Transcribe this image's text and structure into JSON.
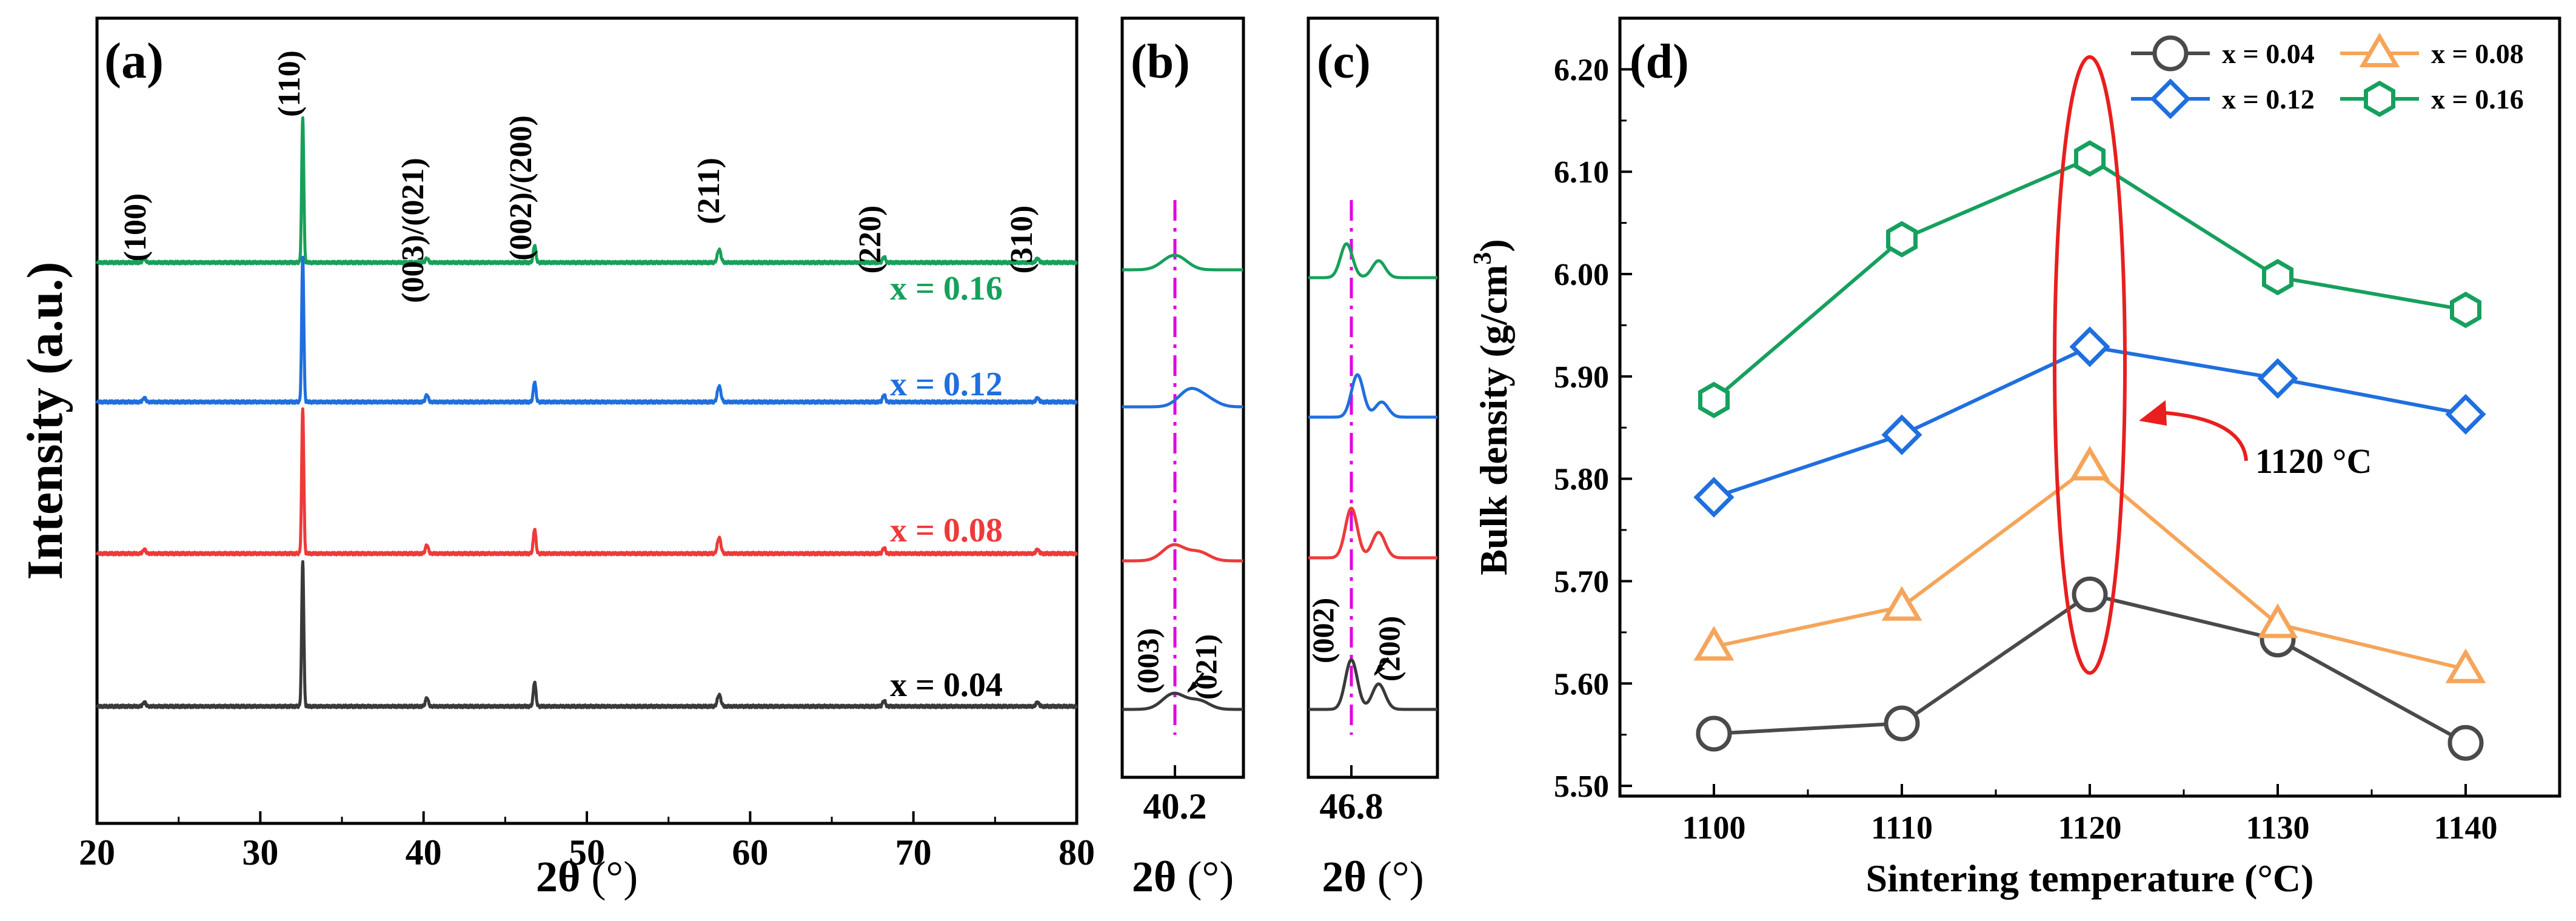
{
  "chart_data": [
    {
      "panel": "a",
      "type": "line",
      "panel_label": "(a)",
      "xlabel_main": "2θ",
      "xlabel_unit": "(°)",
      "ylabel": "Intensity (a.u.)",
      "xlim": [
        20,
        80
      ],
      "xticks": [
        20,
        30,
        40,
        50,
        60,
        70,
        80
      ],
      "peaks": [
        {
          "label": "(100)",
          "x": 22.9
        },
        {
          "label": "(110)",
          "x": 32.6
        },
        {
          "label": "(003)/(021)",
          "x": 40.2
        },
        {
          "label": "(002)/(200)",
          "x": 46.8
        },
        {
          "label": "(211)",
          "x": 58.1
        },
        {
          "label": "(220)",
          "x": 68.2
        },
        {
          "label": "(310)",
          "x": 77.6
        }
      ],
      "series": [
        {
          "name": "x = 0.16",
          "color": "#17a05a",
          "values": [
            3,
            100,
            3,
            12,
            9,
            4,
            3
          ]
        },
        {
          "name": "x = 0.12",
          "color": "#1f6fde",
          "values": [
            3,
            100,
            5,
            14,
            11,
            5,
            3
          ]
        },
        {
          "name": "x = 0.08",
          "color": "#ee3a3a",
          "values": [
            3,
            100,
            6,
            17,
            11,
            4,
            3
          ]
        },
        {
          "name": "x = 0.04",
          "color": "#3a3a3a",
          "values": [
            3,
            100,
            6,
            17,
            8,
            4,
            3
          ]
        }
      ]
    },
    {
      "panel": "b",
      "type": "line",
      "panel_label": "(b)",
      "tick_label": "40.2",
      "xlabel_main": "2θ",
      "xlabel_unit": "(°)",
      "annotations": [
        "(003)",
        "(021)"
      ]
    },
    {
      "panel": "c",
      "type": "line",
      "panel_label": "(c)",
      "tick_label": "46.8",
      "xlabel_main": "2θ",
      "xlabel_unit": "(°)",
      "annotations": [
        "(002)",
        "(200)"
      ]
    },
    {
      "panel": "d",
      "type": "line",
      "panel_label": "(d)",
      "xlabel": "Sintering temperature (°C)",
      "ylabel": "Bulk density (g/cm",
      "ylabel_sup": "3",
      "ylabel_end": ")",
      "categories": [
        1100,
        1110,
        1120,
        1130,
        1140
      ],
      "xlim": [
        1095,
        1145
      ],
      "ylim": [
        5.49,
        6.25
      ],
      "yticks": [
        "5.50",
        "5.60",
        "5.70",
        "5.80",
        "5.90",
        "6.00",
        "6.10",
        "6.20"
      ],
      "annotation": "1120 °C",
      "legend_position": "top-right",
      "series": [
        {
          "name": "x = 0.04",
          "marker": "circle",
          "color": "#4a4a4a",
          "values": [
            5.551,
            5.561,
            5.687,
            5.643,
            5.542
          ]
        },
        {
          "name": "x = 0.08",
          "marker": "triangle",
          "color": "#f5a55a",
          "values": [
            5.636,
            5.675,
            5.812,
            5.658,
            5.614
          ]
        },
        {
          "name": "x = 0.12",
          "marker": "diamond",
          "color": "#1f6fde",
          "values": [
            5.782,
            5.843,
            5.929,
            5.898,
            5.863
          ]
        },
        {
          "name": "x = 0.16",
          "marker": "hexagon",
          "color": "#16a05d",
          "values": [
            5.877,
            6.034,
            6.113,
            5.997,
            5.965
          ]
        }
      ]
    }
  ]
}
